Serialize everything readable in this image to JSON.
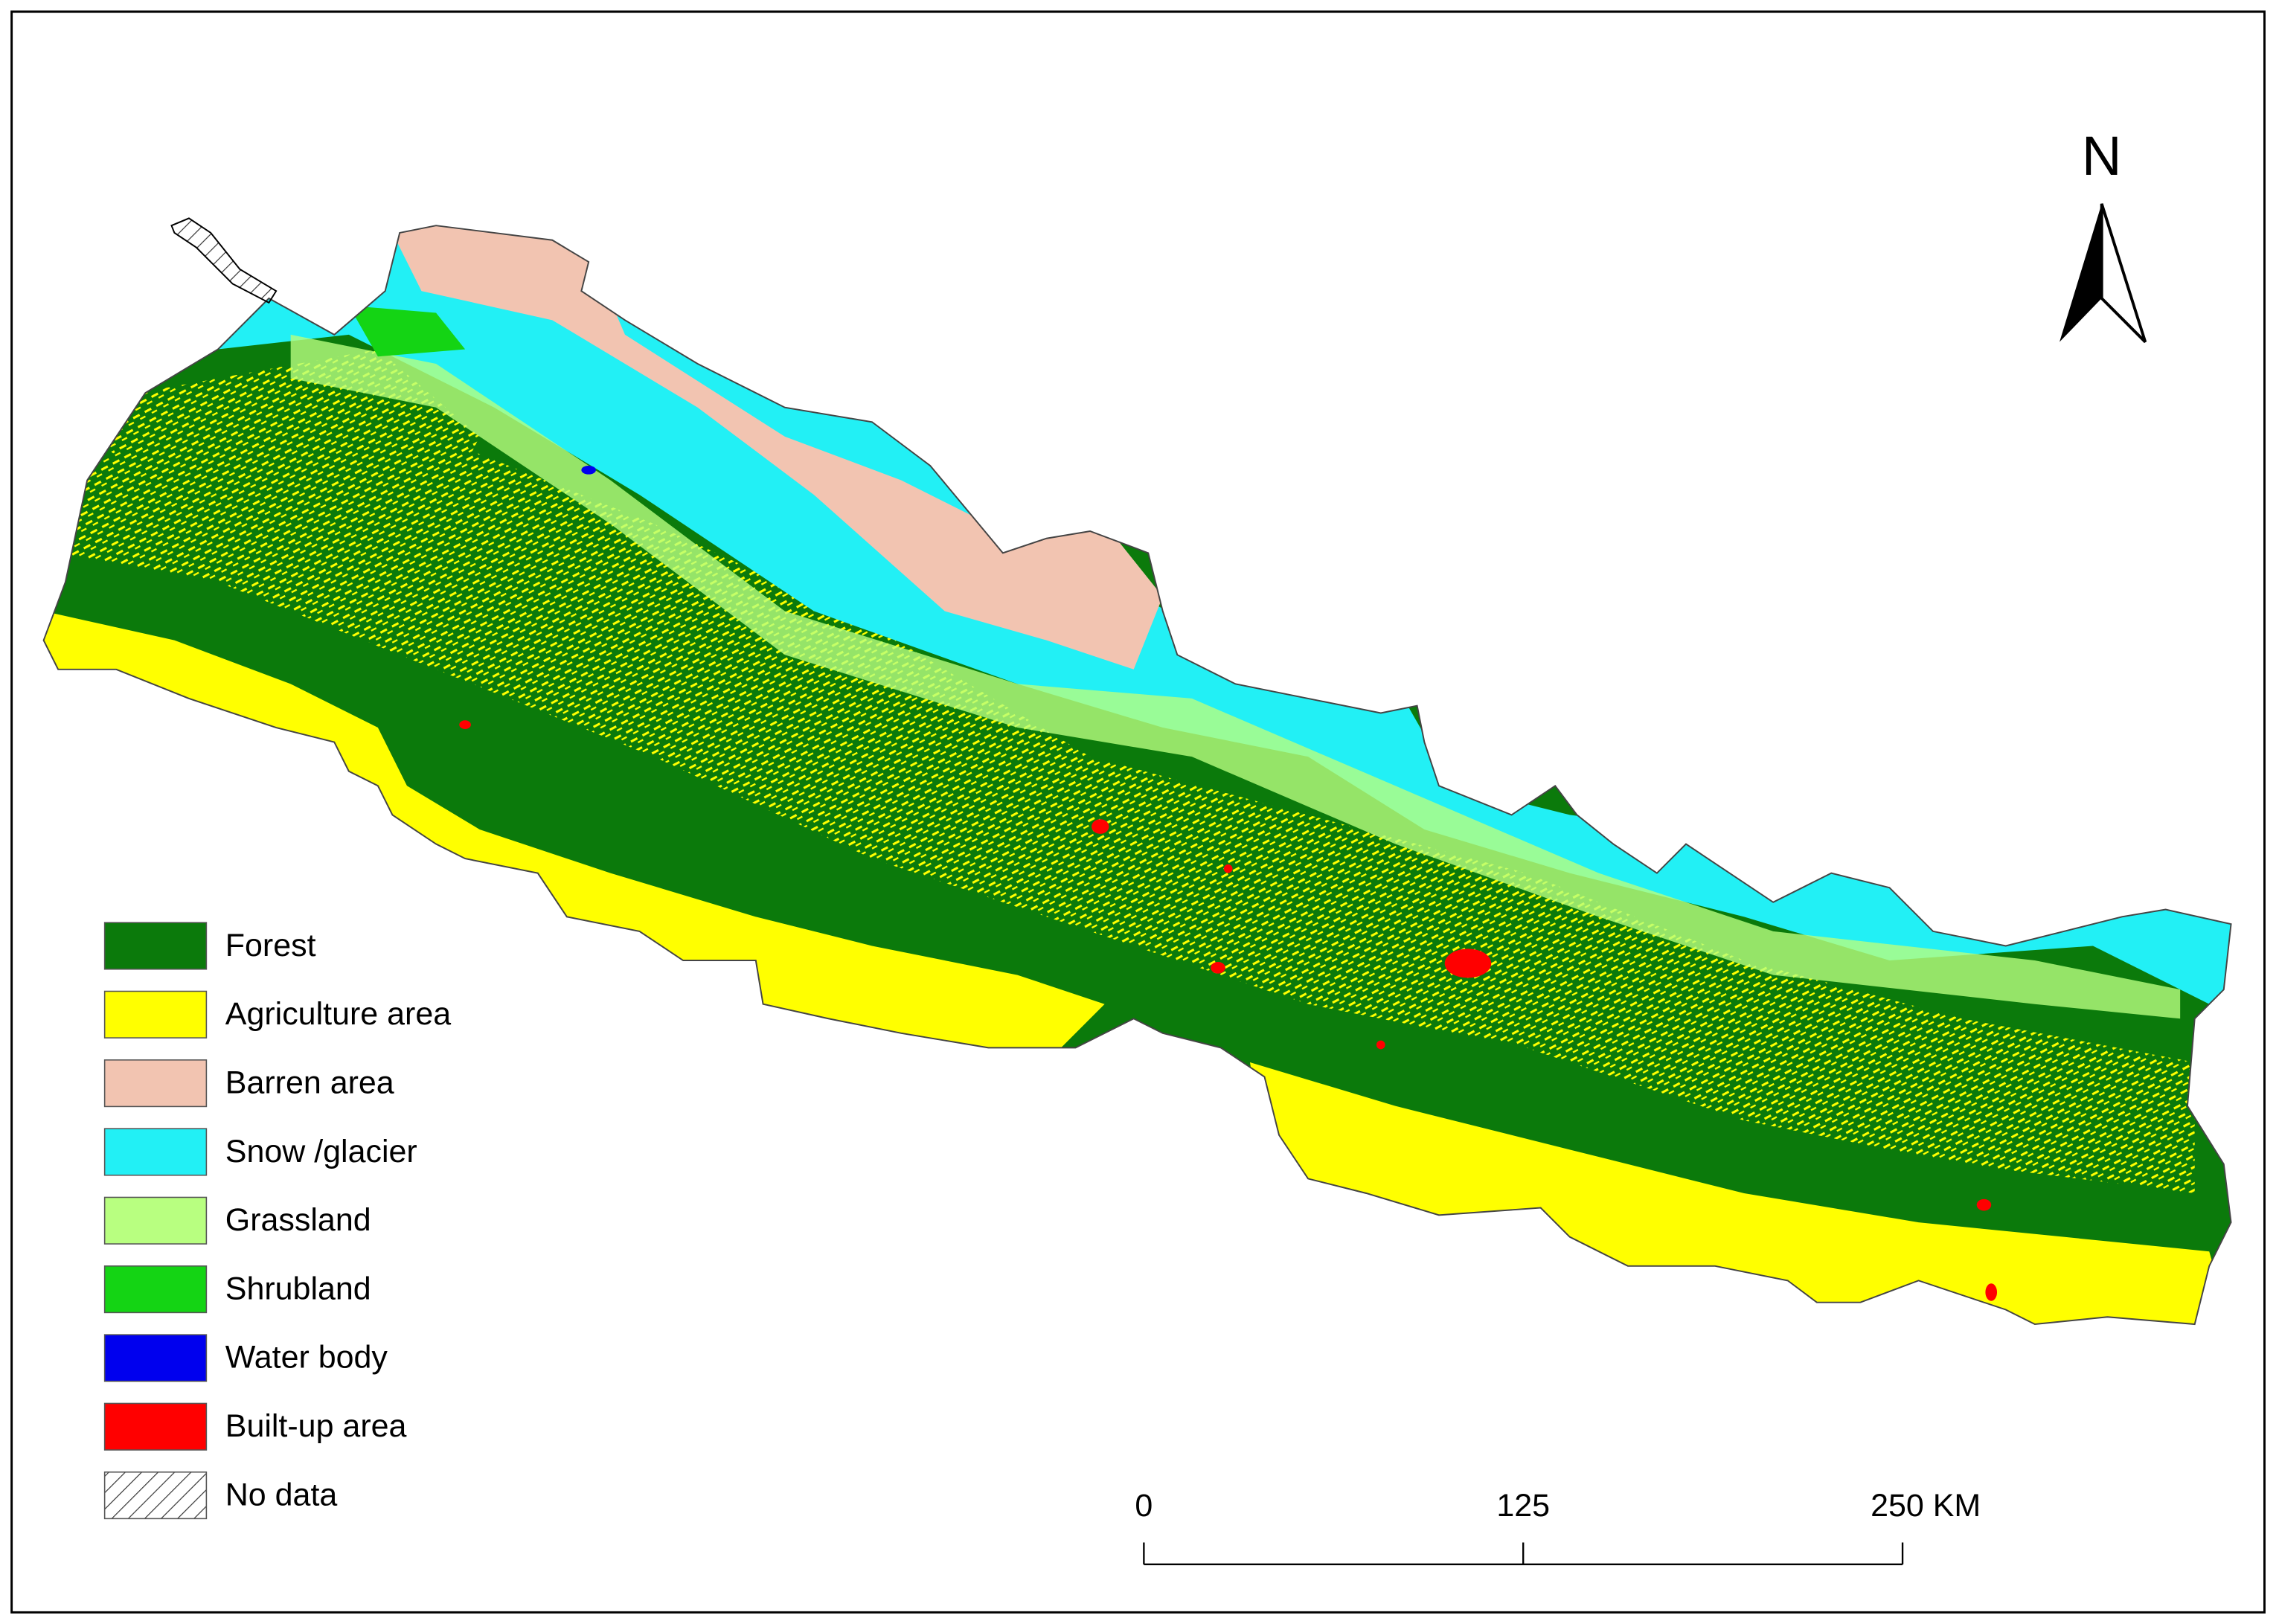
{
  "legend": {
    "items": [
      {
        "label": "Forest",
        "color": "#0b7a0b"
      },
      {
        "label": "Agriculture area",
        "color": "#ffff00"
      },
      {
        "label": "Barren area",
        "color": "#f2c4b1"
      },
      {
        "label": "Snow /glacier",
        "color": "#22f0f5"
      },
      {
        "label": "Grassland",
        "color": "#b8ff80"
      },
      {
        "label": "Shrubland",
        "color": "#14d414"
      },
      {
        "label": "Water body",
        "color": "#0000ee"
      },
      {
        "label": "Built-up area",
        "color": "#ff0000"
      },
      {
        "label": "No data",
        "color": "#ffffff"
      }
    ]
  },
  "north_arrow": {
    "label": "N"
  },
  "scale_bar": {
    "ticks": [
      {
        "value": 0,
        "label": "0"
      },
      {
        "value": 125,
        "label": "125"
      },
      {
        "value": 250,
        "label": "250 KM"
      }
    ]
  }
}
